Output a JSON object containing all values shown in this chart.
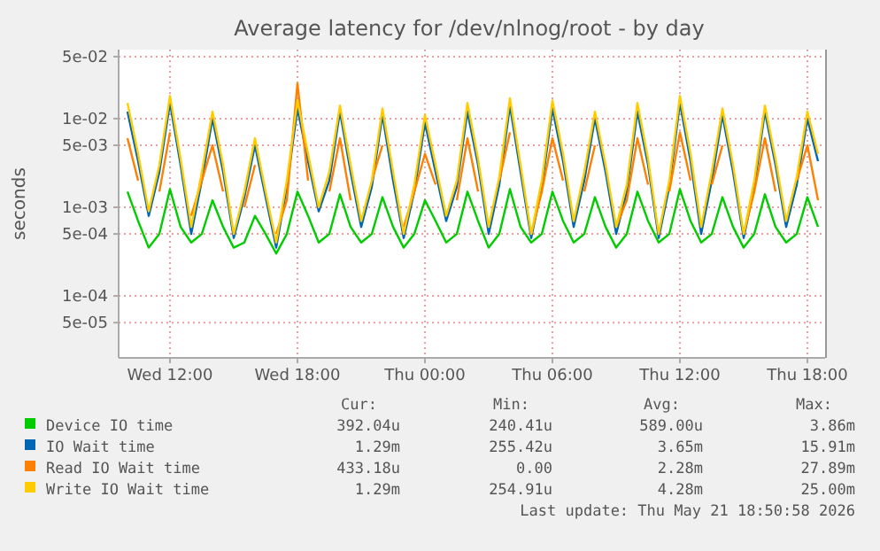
{
  "chart_data": {
    "type": "line",
    "title": "Average latency for /dev/nlnog/root - by day",
    "ylabel": "seconds",
    "log": true,
    "grid": true,
    "legend": "bottom",
    "xlim": [
      "2026-05-20T09:35",
      "2026-05-21T18:50"
    ],
    "xticks": [
      {
        "value": "2026-05-20T12:00",
        "label": "Wed 12:00"
      },
      {
        "value": "2026-05-20T18:00",
        "label": "Wed 18:00"
      },
      {
        "value": "2026-05-21T00:00",
        "label": "Thu 00:00"
      },
      {
        "value": "2026-05-21T06:00",
        "label": "Thu 06:00"
      },
      {
        "value": "2026-05-21T12:00",
        "label": "Thu 12:00"
      },
      {
        "value": "2026-05-21T18:00",
        "label": "Thu 18:00"
      }
    ],
    "ylim": [
      2e-05,
      0.06
    ],
    "yticks": [
      {
        "value": 5e-05,
        "label": "5e-05"
      },
      {
        "value": 0.0001,
        "label": "1e-04"
      },
      {
        "value": 0.0005,
        "label": "5e-04"
      },
      {
        "value": 0.001,
        "label": "1e-03"
      },
      {
        "value": 0.005,
        "label": "5e-03"
      },
      {
        "value": 0.01,
        "label": "1e-02"
      },
      {
        "value": 0.05,
        "label": "5e-02"
      }
    ],
    "x": [
      "2026-05-20T10:00",
      "2026-05-20T10:30",
      "2026-05-20T11:00",
      "2026-05-20T11:30",
      "2026-05-20T12:00",
      "2026-05-20T12:30",
      "2026-05-20T13:00",
      "2026-05-20T13:30",
      "2026-05-20T14:00",
      "2026-05-20T14:30",
      "2026-05-20T15:00",
      "2026-05-20T15:30",
      "2026-05-20T16:00",
      "2026-05-20T16:30",
      "2026-05-20T17:00",
      "2026-05-20T17:30",
      "2026-05-20T18:00",
      "2026-05-20T18:30",
      "2026-05-20T19:00",
      "2026-05-20T19:30",
      "2026-05-20T20:00",
      "2026-05-20T20:30",
      "2026-05-20T21:00",
      "2026-05-20T21:30",
      "2026-05-20T22:00",
      "2026-05-20T22:30",
      "2026-05-20T23:00",
      "2026-05-20T23:30",
      "2026-05-21T00:00",
      "2026-05-21T00:30",
      "2026-05-21T01:00",
      "2026-05-21T01:30",
      "2026-05-21T02:00",
      "2026-05-21T02:30",
      "2026-05-21T03:00",
      "2026-05-21T03:30",
      "2026-05-21T04:00",
      "2026-05-21T04:30",
      "2026-05-21T05:00",
      "2026-05-21T05:30",
      "2026-05-21T06:00",
      "2026-05-21T06:30",
      "2026-05-21T07:00",
      "2026-05-21T07:30",
      "2026-05-21T08:00",
      "2026-05-21T08:30",
      "2026-05-21T09:00",
      "2026-05-21T09:30",
      "2026-05-21T10:00",
      "2026-05-21T10:30",
      "2026-05-21T11:00",
      "2026-05-21T11:30",
      "2026-05-21T12:00",
      "2026-05-21T12:30",
      "2026-05-21T13:00",
      "2026-05-21T13:30",
      "2026-05-21T14:00",
      "2026-05-21T14:30",
      "2026-05-21T15:00",
      "2026-05-21T15:30",
      "2026-05-21T16:00",
      "2026-05-21T16:30",
      "2026-05-21T17:00",
      "2026-05-21T17:30",
      "2026-05-21T18:00",
      "2026-05-21T18:30"
    ],
    "series": [
      {
        "name": "Device IO time",
        "color": "#00cc00",
        "values": [
          0.0015,
          0.0007,
          0.00035,
          0.0005,
          0.0016,
          0.0006,
          0.0004,
          0.0005,
          0.0012,
          0.0006,
          0.00035,
          0.0004,
          0.0008,
          0.0005,
          0.0003,
          0.0005,
          0.0015,
          0.0008,
          0.0004,
          0.0005,
          0.0014,
          0.0006,
          0.0004,
          0.0005,
          0.0013,
          0.0006,
          0.00035,
          0.0005,
          0.0012,
          0.0007,
          0.0004,
          0.0005,
          0.0015,
          0.0007,
          0.00035,
          0.0005,
          0.0016,
          0.0006,
          0.0004,
          0.0005,
          0.0015,
          0.0007,
          0.0004,
          0.0005,
          0.0013,
          0.0006,
          0.00035,
          0.0005,
          0.0015,
          0.0007,
          0.0004,
          0.0005,
          0.0016,
          0.0007,
          0.0004,
          0.0005,
          0.0013,
          0.0006,
          0.00035,
          0.0005,
          0.0014,
          0.0006,
          0.0004,
          0.0005,
          0.0013,
          0.0006
        ]
      },
      {
        "name": "IO Wait time",
        "color": "#0066b3",
        "values": [
          0.012,
          0.0033,
          0.0008,
          0.0025,
          0.015,
          0.003,
          0.0005,
          0.002,
          0.01,
          0.0025,
          0.00045,
          0.0013,
          0.005,
          0.0013,
          0.00035,
          0.0017,
          0.013,
          0.0033,
          0.0009,
          0.002,
          0.012,
          0.0025,
          0.0006,
          0.0017,
          0.011,
          0.002,
          0.00045,
          0.0015,
          0.009,
          0.0025,
          0.0007,
          0.0017,
          0.012,
          0.003,
          0.0005,
          0.0018,
          0.014,
          0.0025,
          0.00045,
          0.0017,
          0.013,
          0.0033,
          0.0006,
          0.002,
          0.01,
          0.0025,
          0.0005,
          0.0015,
          0.012,
          0.003,
          0.00045,
          0.0017,
          0.015,
          0.0033,
          0.0005,
          0.002,
          0.011,
          0.0025,
          0.00045,
          0.0017,
          0.012,
          0.003,
          0.0006,
          0.0018,
          0.01,
          0.0033
        ]
      },
      {
        "name": "Read IO Wait time",
        "color": "#ff8000",
        "values": [
          0.006,
          0.002,
          null,
          0.0015,
          0.007,
          null,
          0.0008,
          0.002,
          0.005,
          0.0015,
          null,
          0.001,
          0.003,
          null,
          0.0005,
          0.0012,
          0.025,
          0.002,
          null,
          0.0015,
          0.006,
          0.0012,
          null,
          0.002,
          0.005,
          null,
          0.0006,
          0.0015,
          0.004,
          0.0018,
          null,
          0.0012,
          0.006,
          0.0015,
          null,
          0.002,
          0.007,
          null,
          0.0005,
          0.0015,
          0.006,
          0.002,
          null,
          0.0015,
          0.005,
          null,
          0.0006,
          0.0012,
          0.006,
          0.0018,
          null,
          0.0015,
          0.007,
          0.002,
          null,
          0.0018,
          0.005,
          null,
          0.0005,
          0.0015,
          0.006,
          0.0015,
          null,
          0.002,
          0.005,
          0.0012
        ]
      },
      {
        "name": "Write IO Wait time",
        "color": "#ffcc00",
        "values": [
          0.015,
          0.004,
          0.0009,
          0.003,
          0.018,
          0.0035,
          0.0006,
          0.0025,
          0.012,
          0.003,
          0.0005,
          0.0015,
          0.006,
          0.0015,
          0.0004,
          0.002,
          0.016,
          0.004,
          0.001,
          0.0025,
          0.014,
          0.003,
          0.0007,
          0.002,
          0.013,
          0.0025,
          0.0005,
          0.0018,
          0.011,
          0.003,
          0.0008,
          0.002,
          0.015,
          0.0035,
          0.0006,
          0.0022,
          0.017,
          0.003,
          0.0005,
          0.002,
          0.016,
          0.004,
          0.0007,
          0.0025,
          0.012,
          0.003,
          0.0006,
          0.0018,
          0.015,
          0.0035,
          0.0005,
          0.002,
          0.018,
          0.004,
          0.0006,
          0.0025,
          0.013,
          0.003,
          0.0005,
          0.002,
          0.014,
          0.0035,
          0.0007,
          0.0022,
          0.012,
          0.004
        ]
      }
    ],
    "annotations": [
      "Cur:",
      "Min:",
      "Avg:",
      "Max:",
      "392.04u",
      "240.41u",
      "589.00u",
      "3.86m",
      "1.29m",
      "255.42u",
      "3.65m",
      "15.91m",
      "433.18u",
      "0.00",
      "2.28m",
      "27.89m",
      "1.29m",
      "254.91u",
      "4.28m",
      "25.00m",
      "Last update: Thu May 21 18:50:58 2026"
    ]
  }
}
